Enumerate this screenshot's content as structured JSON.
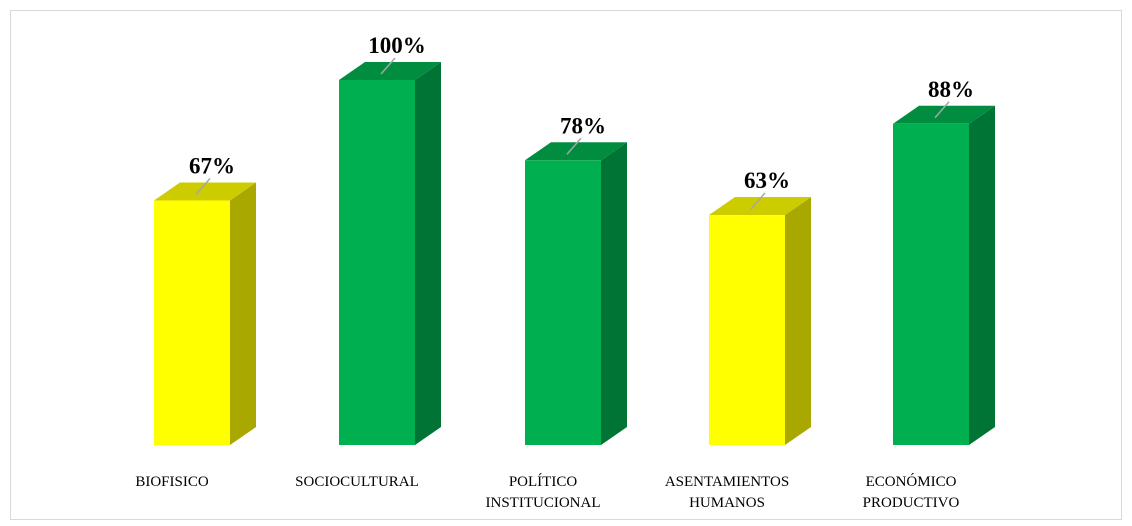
{
  "chart_data": {
    "type": "bar",
    "categories": [
      [
        "BIOFISICO"
      ],
      [
        "SOCIOCULTURAL"
      ],
      [
        "POLÍTICO",
        "INSTITUCIONAL"
      ],
      [
        "ASENTAMIENTOS",
        "HUMANOS"
      ],
      [
        "ECONÓMICO",
        "PRODUCTIVO"
      ]
    ],
    "values": [
      67,
      100,
      78,
      63,
      88
    ],
    "value_labels": [
      "67%",
      "100%",
      "78%",
      "63%",
      "88%"
    ],
    "colors": [
      "#ffff00",
      "#00b050",
      "#00b050",
      "#ffff00",
      "#00b050"
    ],
    "ylim": [
      0,
      100
    ]
  }
}
